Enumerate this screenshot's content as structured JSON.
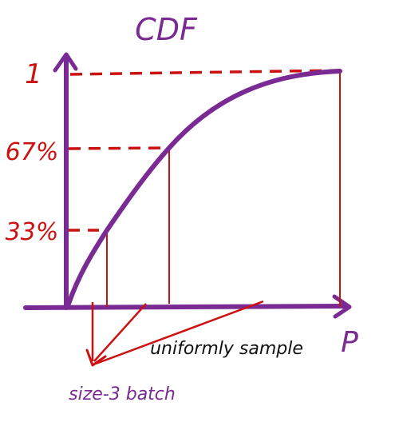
{
  "title": "CDF",
  "axis": {
    "x_label": "P"
  },
  "levels": [
    {
      "label": "1",
      "value": 1.0
    },
    {
      "label": "67%",
      "value": 0.67
    },
    {
      "label": "33%",
      "value": 0.33
    }
  ],
  "annotations": {
    "uniform": "uniformly sample",
    "batch": "size-3 batch"
  },
  "colors": {
    "curve": "#7a2a93",
    "axis": "#7a2a93",
    "guide": "#cc1111",
    "title": "#7a2a93",
    "labels_red": "#cc1111",
    "text_black": "#111111"
  }
}
